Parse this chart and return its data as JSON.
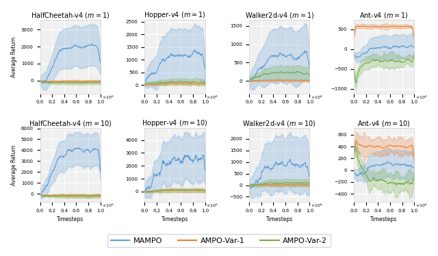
{
  "nrows": 2,
  "ncols": 4,
  "figsize": [
    6.4,
    3.74
  ],
  "dpi": 100,
  "subplot_titles": [
    [
      "HalfCheetah-v4 $(m=1)$",
      "Hopper-v4 $(m=1)$",
      "Walker2d-v4 $(m=1)$",
      "Ant-v4 $(m=1)$"
    ],
    [
      "HalfCheetah-v4 $(m=10)$",
      "Hopper-v4 $(m=10)$",
      "Walker2d-v4 $(m=10)$",
      "Ant-v4 $(m=10)$"
    ]
  ],
  "xlabel": "Timesteps",
  "ylabel_left": "Average Return",
  "colors": {
    "MAMPO": "#5b9bd5",
    "AMPO-Var1": "#ed7d31",
    "AMPO-Var2": "#70ad47"
  },
  "alpha_fill": 0.25,
  "n_points": 200,
  "legend_labels": [
    "MAMPO",
    "AMPO-Var-1",
    "AMPO-Var-2"
  ],
  "background_color": "#f0f0f0",
  "grid_color": "white",
  "title_fontsize": 7,
  "axis_fontsize": 5,
  "legend_fontsize": 8
}
